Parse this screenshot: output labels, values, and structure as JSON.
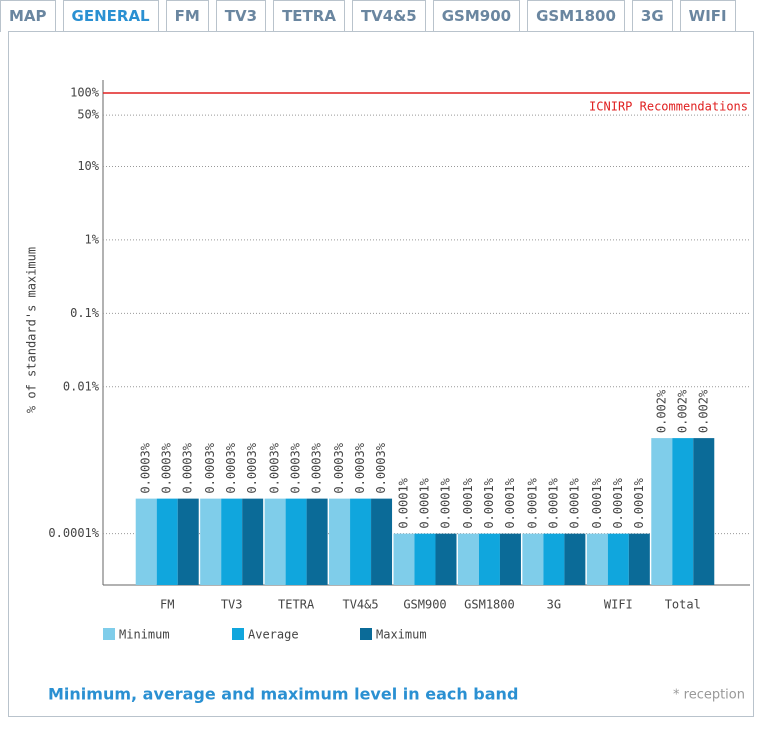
{
  "tabs": [
    "MAP",
    "GENERAL",
    "FM",
    "TV3",
    "TETRA",
    "TV4&5",
    "GSM900",
    "GSM1800",
    "3G",
    "WIFI"
  ],
  "active_tab": "GENERAL",
  "chart_data": {
    "type": "bar",
    "y_label": "% of standard's maximum",
    "log_scale": true,
    "grid": true,
    "categories": [
      "FM",
      "TV3",
      "TETRA",
      "TV4&5",
      "GSM900",
      "GSM1800",
      "3G",
      "WIFI",
      "Total"
    ],
    "series": [
      {
        "name": "Minimum",
        "color": "#7fcdea",
        "values": [
          0.0003,
          0.0003,
          0.0003,
          0.0003,
          0.0001,
          0.0001,
          0.0001,
          0.0001,
          0.002
        ],
        "value_labels": [
          "0.0003%",
          "0.0003%",
          "0.0003%",
          "0.0003%",
          "0.0001%",
          "0.0001%",
          "0.0001%",
          "0.0001%",
          "0.002%"
        ]
      },
      {
        "name": "Average",
        "color": "#10a6dd",
        "values": [
          0.0003,
          0.0003,
          0.0003,
          0.0003,
          0.0001,
          0.0001,
          0.0001,
          0.0001,
          0.002
        ],
        "value_labels": [
          "0.0003%",
          "0.0003%",
          "0.0003%",
          "0.0003%",
          "0.0001%",
          "0.0001%",
          "0.0001%",
          "0.0001%",
          "0.002%"
        ]
      },
      {
        "name": "Maximum",
        "color": "#0b6b98",
        "values": [
          0.0003,
          0.0003,
          0.0003,
          0.0003,
          0.0001,
          0.0001,
          0.0001,
          0.0001,
          0.002
        ],
        "value_labels": [
          "0.0003%",
          "0.0003%",
          "0.0003%",
          "0.0003%",
          "0.0001%",
          "0.0001%",
          "0.0001%",
          "0.0001%",
          "0.002%"
        ]
      }
    ],
    "ylim": [
      2e-05,
      100
    ],
    "yticks": [
      {
        "value": 100,
        "label": "100%"
      },
      {
        "value": 50,
        "label": "50%"
      },
      {
        "value": 10,
        "label": "10%"
      },
      {
        "value": 1,
        "label": "1%"
      },
      {
        "value": 0.1,
        "label": "0.1%"
      },
      {
        "value": 0.01,
        "label": "0.01%"
      },
      {
        "value": 0.0001,
        "label": "0.0001%"
      }
    ],
    "reference_line": {
      "value": 100,
      "label": "ICNIRP Recommendations",
      "color": "#e02020"
    }
  },
  "caption": "Minimum, average and maximum level in each band",
  "note": "* reception"
}
